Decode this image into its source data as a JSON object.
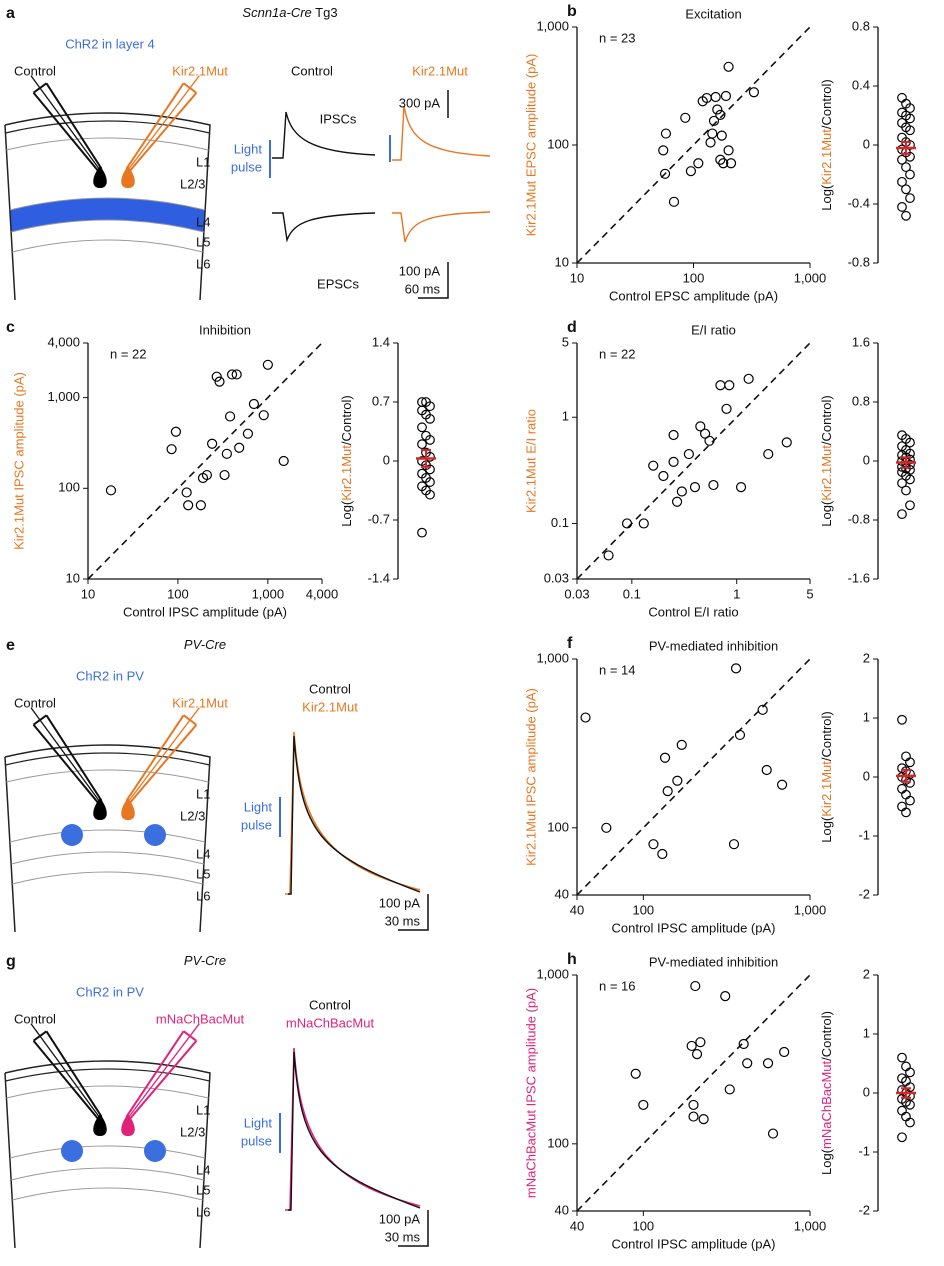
{
  "diagrams": [
    {
      "panel": "a",
      "title": [
        "Scnn1a-Cre",
        " Tg3"
      ],
      "stim": "ChR2 in layer 4",
      "stim_color": "#3b6fe0",
      "control": "Control",
      "mutant": "Kir2.1Mut",
      "mutant_color": "#e87722",
      "layers": [
        "L1",
        "L2/3",
        "L4",
        "L5",
        "L6"
      ],
      "traces": [
        "Control",
        "Kir2.1Mut"
      ],
      "currents": [
        "IPSCs",
        "EPSCs"
      ],
      "light": [
        "Light",
        "pulse"
      ],
      "scale_bars": [
        [
          "300 pA"
        ],
        [
          "100 pA",
          "60 ms"
        ]
      ]
    },
    {
      "panel": "e",
      "title": [
        "PV-Cre"
      ],
      "stim": "ChR2 in PV",
      "stim_color": "#3b6fe0",
      "control": "Control",
      "mutant": "Kir2.1Mut",
      "mutant_color": "#e87722",
      "layers": [
        "L1",
        "L2/3",
        "L4",
        "L5",
        "L6"
      ],
      "traces": [
        "Control",
        "Kir2.1Mut"
      ],
      "light": [
        "Light",
        "pulse"
      ],
      "scale_bars": [
        [
          "100 pA",
          "30 ms"
        ]
      ]
    },
    {
      "panel": "g",
      "title": [
        "PV-Cre"
      ],
      "stim": "ChR2 in PV",
      "stim_color": "#3b6fe0",
      "control": "Control",
      "mutant": "mNaChBacMut",
      "mutant_color": "#e0237a",
      "layers": [
        "L1",
        "L2/3",
        "L4",
        "L5",
        "L6"
      ],
      "traces": [
        "Control",
        "mNaChBacMut"
      ],
      "light": [
        "Light",
        "pulse"
      ],
      "scale_bars": [
        [
          "100 pA",
          "30 ms"
        ]
      ]
    }
  ],
  "chart_data": [
    {
      "type": "scatter",
      "panel": "b",
      "title": "Excitation",
      "annotation": "n = 23",
      "xlabel": "Control EPSC amplitude (pA)",
      "ylabel": "Kir2.1Mut EPSC amplitude (pA)",
      "ylabel_color": "#e87722",
      "color": "#000000",
      "log_scale": true,
      "identity_line": true,
      "x": [
        57,
        55,
        58,
        68,
        85,
        95,
        110,
        120,
        130,
        140,
        145,
        150,
        155,
        160,
        170,
        170,
        175,
        180,
        190,
        200,
        210,
        200,
        330
      ],
      "y": [
        57,
        90,
        125,
        33,
        170,
        60,
        70,
        235,
        250,
        105,
        125,
        160,
        255,
        200,
        180,
        75,
        120,
        70,
        260,
        90,
        70,
        460,
        280
      ],
      "xlim": [
        10,
        1000
      ],
      "ylim": [
        10,
        1000
      ],
      "xticks": [
        10,
        100,
        {
          "value": 1000,
          "label": "1,000"
        }
      ],
      "yticks": [
        10,
        100,
        {
          "value": 1000,
          "label": "1,000"
        }
      ]
    },
    {
      "type": "strip",
      "ylabel": [
        "Log(",
        "Kir2.1Mut",
        "/Control)"
      ],
      "ylabel_color": "#e87722",
      "color": "#000000",
      "mean_color": "#d62728",
      "values": [
        0.32,
        0.28,
        0.25,
        0.22,
        0.2,
        0.18,
        0.15,
        0.12,
        0.1,
        0.05,
        0.02,
        0,
        -0.03,
        -0.05,
        -0.08,
        -0.1,
        -0.15,
        -0.2,
        -0.25,
        -0.3,
        -0.36,
        -0.42,
        -0.48
      ],
      "mean": -0.02,
      "sem": 0.04,
      "ylim": [
        -0.8,
        0.8
      ],
      "yticks": [
        -0.8,
        -0.4,
        0,
        0.4,
        0.8
      ]
    },
    {
      "type": "scatter",
      "panel": "c",
      "title": "Inhibition",
      "annotation": "n = 22",
      "xlabel": "Control IPSC amplitude (pA)",
      "ylabel": "Kir2.1Mut IPSC amplitude (pA)",
      "ylabel_color": "#e87722",
      "color": "#000000",
      "log_scale": true,
      "identity_line": true,
      "x": [
        18,
        85,
        95,
        125,
        130,
        180,
        190,
        210,
        240,
        270,
        290,
        330,
        350,
        380,
        400,
        450,
        480,
        600,
        700,
        900,
        1000,
        1500
      ],
      "y": [
        95,
        270,
        420,
        90,
        65,
        65,
        130,
        140,
        310,
        1700,
        1500,
        140,
        240,
        620,
        1800,
        1800,
        280,
        400,
        850,
        640,
        2300,
        200
      ],
      "xlim": [
        10,
        4000
      ],
      "ylim": [
        10,
        4000
      ],
      "xticks": [
        10,
        100,
        {
          "value": 1000,
          "label": "1,000"
        },
        {
          "value": 4000,
          "label": "4,000"
        }
      ],
      "yticks": [
        10,
        100,
        {
          "value": 1000,
          "label": "1,000"
        },
        {
          "value": 4000,
          "label": "4,000"
        }
      ]
    },
    {
      "type": "strip",
      "ylabel": [
        "Log(",
        "Kir2.1Mut",
        "/Control)"
      ],
      "ylabel_color": "#e87722",
      "color": "#000000",
      "mean_color": "#d62728",
      "values": [
        0.7,
        0.7,
        0.65,
        0.6,
        0.55,
        0.5,
        0.4,
        0.3,
        0.25,
        0.2,
        0.1,
        0.05,
        0,
        -0.05,
        -0.1,
        -0.15,
        -0.2,
        -0.25,
        -0.3,
        -0.35,
        -0.4,
        -0.85
      ],
      "mean": 0.03,
      "sem": 0.1,
      "ylim": [
        -1.4,
        1.4
      ],
      "yticks": [
        -1.4,
        -0.7,
        0,
        0.7,
        1.4
      ]
    },
    {
      "type": "scatter",
      "panel": "d",
      "title": "E/I ratio",
      "annotation": "n = 22",
      "xlabel": "Control E/I ratio",
      "ylabel": "Kir2.1Mut E/I ratio",
      "ylabel_color": "#e87722",
      "color": "#000000",
      "log_scale": true,
      "identity_line": true,
      "x": [
        0.06,
        0.09,
        0.13,
        0.16,
        0.2,
        0.25,
        0.25,
        0.27,
        0.3,
        0.35,
        0.4,
        0.45,
        0.5,
        0.55,
        0.6,
        0.7,
        0.8,
        0.85,
        1.1,
        1.3,
        2,
        3
      ],
      "y": [
        0.05,
        0.1,
        0.1,
        0.35,
        0.28,
        0.38,
        0.68,
        0.16,
        0.2,
        0.45,
        0.22,
        0.82,
        0.7,
        0.6,
        0.23,
        2.0,
        1.2,
        2.0,
        0.22,
        2.3,
        0.45,
        0.58
      ],
      "xlim": [
        0.03,
        5
      ],
      "ylim": [
        0.03,
        5
      ],
      "xticks": [
        0.03,
        0.1,
        1,
        5
      ],
      "yticks": [
        0.03,
        0.1,
        1,
        5
      ]
    },
    {
      "type": "strip",
      "ylabel": [
        "Log(",
        "Kir2.1Mut",
        "/Control)"
      ],
      "ylabel_color": "#e87722",
      "color": "#000000",
      "mean_color": "#d62728",
      "values": [
        0.35,
        0.3,
        0.25,
        0.2,
        0.15,
        0.1,
        0.08,
        0.05,
        0.02,
        0,
        -0.02,
        -0.05,
        -0.08,
        -0.1,
        -0.12,
        -0.15,
        -0.2,
        -0.25,
        -0.3,
        -0.4,
        -0.6,
        -0.72
      ],
      "mean": -0.02,
      "sem": 0.07,
      "ylim": [
        -1.6,
        1.6
      ],
      "yticks": [
        -1.6,
        -0.8,
        0,
        0.8,
        1.6
      ]
    },
    {
      "type": "scatter",
      "panel": "f",
      "title": "PV-mediated inhibition",
      "annotation": "n = 14",
      "xlabel": "Control IPSC amplitude (pA)",
      "ylabel": "Kir2.1Mut IPSC amplitude (pA)",
      "ylabel_color": "#e87722",
      "color": "#000000",
      "log_scale": true,
      "identity_line": true,
      "x": [
        45,
        60,
        115,
        130,
        135,
        140,
        160,
        170,
        350,
        360,
        380,
        520,
        550,
        680
      ],
      "y": [
        450,
        100,
        80,
        70,
        260,
        165,
        190,
        310,
        80,
        880,
        355,
        500,
        220,
        180
      ],
      "xlim": [
        40,
        1000
      ],
      "ylim": [
        40,
        1000
      ],
      "xticks": [
        40,
        100,
        {
          "value": 1000,
          "label": "1,000"
        }
      ],
      "yticks": [
        40,
        100,
        {
          "value": 1000,
          "label": "1,000"
        }
      ]
    },
    {
      "type": "strip",
      "ylabel": [
        "Log(",
        "Kir2.1Mut",
        "/Control)"
      ],
      "ylabel_color": "#e87722",
      "color": "#000000",
      "mean_color": "#d62728",
      "values": [
        0.97,
        0.35,
        0.25,
        0.15,
        0.1,
        0.05,
        0,
        -0.05,
        -0.1,
        -0.2,
        -0.3,
        -0.4,
        -0.5,
        -0.6
      ],
      "mean": 0.02,
      "sem": 0.1,
      "ylim": [
        -2,
        2
      ],
      "yticks": [
        -2,
        -1,
        0,
        1,
        2
      ]
    },
    {
      "type": "scatter",
      "panel": "h",
      "title": "PV-mediated inhibition",
      "annotation": "n = 16",
      "xlabel": "Control IPSC amplitude (pA)",
      "ylabel": "mNaChBacMut IPSC amplitude (pA)",
      "ylabel_color": "#e0237a",
      "color": "#000000",
      "log_scale": true,
      "identity_line": true,
      "x": [
        90,
        100,
        195,
        200,
        200,
        205,
        210,
        220,
        230,
        310,
        330,
        400,
        420,
        560,
        600,
        700
      ],
      "y": [
        260,
        170,
        380,
        145,
        170,
        860,
        340,
        400,
        140,
        750,
        210,
        390,
        300,
        300,
        115,
        350
      ],
      "xlim": [
        40,
        1000
      ],
      "ylim": [
        40,
        1000
      ],
      "xticks": [
        40,
        100,
        {
          "value": 1000,
          "label": "1,000"
        }
      ],
      "yticks": [
        40,
        100,
        {
          "value": 1000,
          "label": "1,000"
        }
      ]
    },
    {
      "type": "strip",
      "ylabel": [
        "Log(",
        "mNaChBacMut",
        "/Control)"
      ],
      "ylabel_color": "#e0237a",
      "color": "#000000",
      "mean_color": "#d62728",
      "values": [
        0.6,
        0.45,
        0.35,
        0.25,
        0.2,
        0.1,
        0.05,
        0,
        -0.05,
        -0.1,
        -0.15,
        -0.2,
        -0.3,
        -0.4,
        -0.5,
        -0.75
      ],
      "mean": 0,
      "sem": 0.08,
      "ylim": [
        -2,
        2
      ],
      "yticks": [
        -2,
        -1,
        0,
        1,
        2
      ]
    }
  ]
}
